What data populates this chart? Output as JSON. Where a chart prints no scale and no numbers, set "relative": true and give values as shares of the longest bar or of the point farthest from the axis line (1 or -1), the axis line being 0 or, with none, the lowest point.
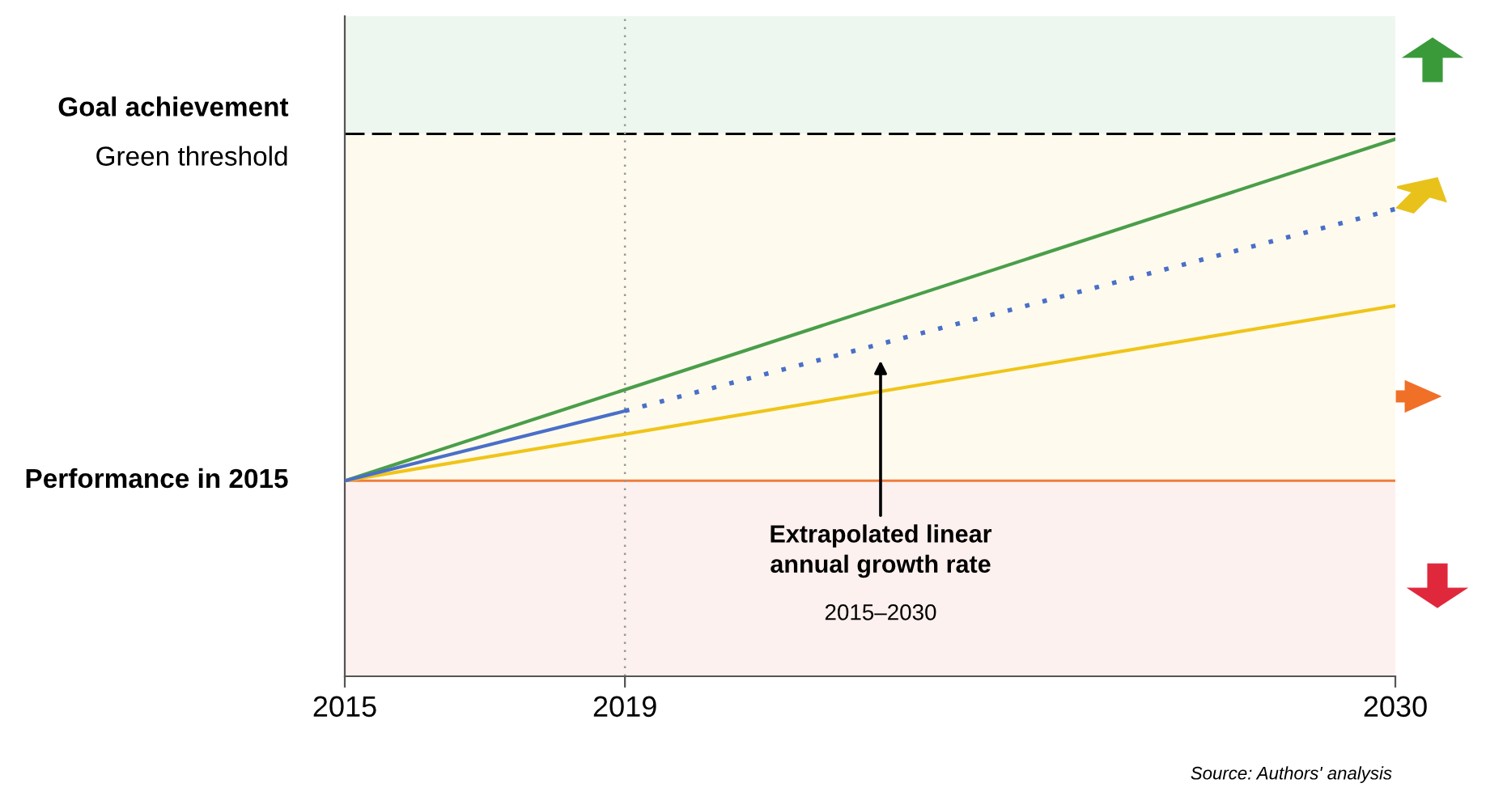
{
  "chart_data": {
    "type": "line",
    "relative": true,
    "xlim": [
      2015,
      2030
    ],
    "xticks": [
      2015,
      2019,
      2030
    ],
    "series": [
      {
        "color": "#4a9e4a",
        "x": [
          2015,
          2030
        ],
        "values": [
          0.364,
          1
        ]
      },
      {
        "color": "#f0c419",
        "x": [
          2015,
          2030
        ],
        "values": [
          0.364,
          0.69
        ]
      },
      {
        "color": "#4a6fc8",
        "x": [
          2015,
          2019
        ],
        "values": [
          0.364,
          0.494
        ]
      },
      {
        "color": "#4a6fc8",
        "x": [
          2019,
          2030
        ],
        "values": [
          0.494,
          0.87
        ],
        "line_style": "dotted"
      }
    ],
    "ref_lines": [
      {
        "axis": "y",
        "value": 1.01,
        "label": "Goal achievement\nGreen threshold",
        "color": "#000000",
        "line_style": "dashed"
      },
      {
        "axis": "y",
        "value": 0.364,
        "label": "Performance in 2015",
        "color": "#f07d3c",
        "line_style": "solid"
      },
      {
        "axis": "x",
        "value": 2019,
        "color": "#999999",
        "line_style": "dotted"
      }
    ],
    "bands": [
      {
        "axis": "y",
        "from": 0,
        "to": 0.364,
        "color": "#fdf1ef"
      },
      {
        "axis": "y",
        "from": 0.364,
        "to": 1.01,
        "color": "#fefbee"
      },
      {
        "axis": "y",
        "from": 1.01,
        "to": 1.229,
        "color": "#eef7ef"
      }
    ],
    "annotations": [
      "Extrapolated linear\nannual growth rate",
      "2015–2030",
      "Source: Authors' analysis"
    ],
    "grid": false
  }
}
